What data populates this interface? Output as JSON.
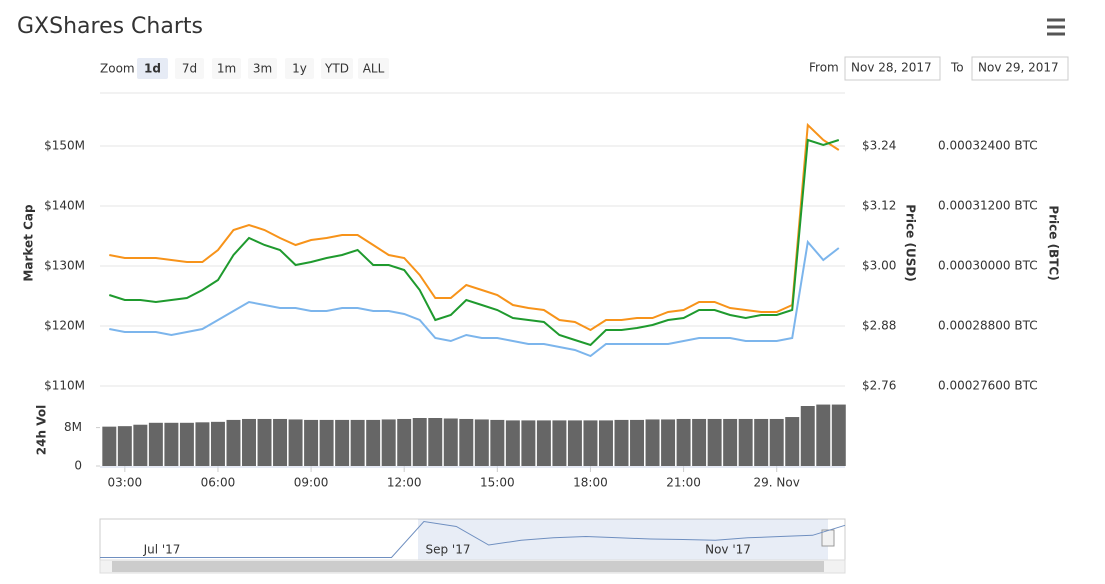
{
  "header": {
    "title": "GXShares Charts"
  },
  "range_selector": {
    "zoom_label": "Zoom",
    "buttons": [
      "1d",
      "7d",
      "1m",
      "3m",
      "1y",
      "YTD",
      "ALL"
    ],
    "selected": 0,
    "from_label": "From",
    "from": "Nov 28, 2017",
    "to_label": "To",
    "to": "Nov 29, 2017"
  },
  "chart_data": {
    "type": "line",
    "x": [
      2.5,
      3,
      3.5,
      4,
      4.5,
      5,
      5.5,
      6,
      6.5,
      7,
      7.5,
      8,
      8.5,
      9,
      9.5,
      10,
      10.5,
      11,
      11.5,
      12,
      12.5,
      13,
      13.5,
      14,
      14.5,
      15,
      15.5,
      16,
      16.5,
      17,
      17.5,
      18,
      18.5,
      19,
      19.5,
      20,
      20.5,
      21,
      21.5,
      22,
      22.5,
      23,
      23.5,
      24,
      24.5,
      25,
      25.5,
      26
    ],
    "xlim": [
      2.2,
      26.2
    ],
    "xticks": [
      {
        "value": 3,
        "label": "03:00"
      },
      {
        "value": 6,
        "label": "06:00"
      },
      {
        "value": 9,
        "label": "09:00"
      },
      {
        "value": 12,
        "label": "12:00"
      },
      {
        "value": 15,
        "label": "15:00"
      },
      {
        "value": 18,
        "label": "18:00"
      },
      {
        "value": 21,
        "label": "21:00"
      },
      {
        "value": 24,
        "label": "29. Nov"
      }
    ],
    "ylim": [
      110000000,
      160000000
    ],
    "yticks": [
      {
        "value": 110000000,
        "label": "$110M"
      },
      {
        "value": 120000000,
        "label": "$120M"
      },
      {
        "value": 130000000,
        "label": "$130M"
      },
      {
        "value": 140000000,
        "label": "$140M"
      },
      {
        "value": 150000000,
        "label": "$150M"
      }
    ],
    "y2lim": [
      2.76,
      3.36
    ],
    "y2ticks": [
      {
        "value": 2.76,
        "label": "$2.76"
      },
      {
        "value": 2.88,
        "label": "$2.88"
      },
      {
        "value": 3.0,
        "label": "$3.00"
      },
      {
        "value": 3.12,
        "label": "$3.12"
      },
      {
        "value": 3.24,
        "label": "$3.24"
      }
    ],
    "y3lim": [
      0.000276,
      0.000336
    ],
    "y3ticks": [
      {
        "value": 0.000276,
        "label": "0.00027600 BTC"
      },
      {
        "value": 0.000288,
        "label": "0.00028800 BTC"
      },
      {
        "value": 0.0003,
        "label": "0.00030000 BTC"
      },
      {
        "value": 0.000312,
        "label": "0.00031200 BTC"
      },
      {
        "value": 0.000324,
        "label": "0.00032400 BTC"
      }
    ],
    "y4lim": [
      0,
      15000000
    ],
    "y4ticks": [
      0,
      {
        "value": 8000000,
        "label": "8M"
      }
    ],
    "grid": true,
    "series": [
      {
        "name": "Market Cap",
        "color": "#7cb5ec",
        "axis": "y",
        "values": [
          119500000,
          119000000,
          119000000,
          119000000,
          118500000,
          119000000,
          119500000,
          121000000,
          122500000,
          124000000,
          123500000,
          123000000,
          123000000,
          122500000,
          122500000,
          123000000,
          123000000,
          122500000,
          122500000,
          122000000,
          121000000,
          118000000,
          117500000,
          118500000,
          118000000,
          118000000,
          117500000,
          117000000,
          117000000,
          116500000,
          116000000,
          115000000,
          117000000,
          117000000,
          117000000,
          117000000,
          117000000,
          117500000,
          118000000,
          118000000,
          118000000,
          117500000,
          117500000,
          117500000,
          118000000,
          134000000,
          131000000,
          133000000
        ]
      },
      {
        "name": "Price (USD)",
        "color": "#1f9a2e",
        "axis": "y2",
        "values": [
          2.942,
          2.932,
          2.932,
          2.928,
          2.932,
          2.936,
          2.952,
          2.972,
          3.022,
          3.056,
          3.042,
          3.032,
          3.002,
          3.008,
          3.016,
          3.022,
          3.032,
          3.002,
          3.002,
          2.992,
          2.952,
          2.892,
          2.902,
          2.932,
          2.922,
          2.912,
          2.896,
          2.892,
          2.888,
          2.862,
          2.852,
          2.842,
          2.872,
          2.872,
          2.876,
          2.882,
          2.892,
          2.896,
          2.912,
          2.912,
          2.902,
          2.896,
          2.902,
          2.902,
          2.912,
          3.252,
          3.242,
          3.252
        ]
      },
      {
        "name": "Price (BTC)",
        "color": "#f7931a",
        "axis": "y3",
        "values": [
          0.0003022,
          0.0003016,
          0.0003016,
          0.0003016,
          0.0003012,
          0.0003008,
          0.0003008,
          0.0003032,
          0.0003072,
          0.0003082,
          0.0003072,
          0.0003056,
          0.0003042,
          0.0003052,
          0.0003056,
          0.0003062,
          0.0003062,
          0.0003042,
          0.0003022,
          0.0003016,
          0.0002982,
          0.0002936,
          0.0002936,
          0.0002962,
          0.0002952,
          0.0002942,
          0.0002922,
          0.0002916,
          0.0002912,
          0.0002892,
          0.0002888,
          0.0002872,
          0.0002892,
          0.0002892,
          0.0002896,
          0.0002896,
          0.0002908,
          0.0002912,
          0.0002928,
          0.0002928,
          0.0002916,
          0.0002912,
          0.0002908,
          0.0002908,
          0.0002922,
          0.0003282,
          0.0003252,
          0.0003232
        ]
      },
      {
        "name": "24h Vol",
        "type": "bar",
        "color": "#666666",
        "axis": "y4",
        "values": [
          8200000,
          8300000,
          8600000,
          9000000,
          9000000,
          9000000,
          9100000,
          9200000,
          9600000,
          9800000,
          9800000,
          9800000,
          9700000,
          9600000,
          9600000,
          9600000,
          9600000,
          9600000,
          9700000,
          9800000,
          10000000,
          10000000,
          9900000,
          9800000,
          9700000,
          9600000,
          9500000,
          9500000,
          9500000,
          9500000,
          9500000,
          9500000,
          9500000,
          9600000,
          9600000,
          9700000,
          9700000,
          9800000,
          9800000,
          9800000,
          9800000,
          9800000,
          9800000,
          9800000,
          10200000,
          12500000,
          12800000,
          12800000
        ]
      }
    ]
  },
  "navigator": {
    "color": "#6f8fc0",
    "labels": [
      "Jul '17",
      "Sep '17",
      "Nov '17"
    ],
    "ylim": [
      0,
      200000000
    ],
    "values": [
      46000000,
      46000000,
      46000000,
      46000000,
      46000000,
      46000000,
      46000000,
      46000000,
      46000000,
      46000000,
      190000000,
      170000000,
      96000000,
      115000000,
      125000000,
      130000000,
      125000000,
      120000000,
      118000000,
      115000000,
      125000000,
      130000000,
      135000000,
      175000000
    ]
  }
}
